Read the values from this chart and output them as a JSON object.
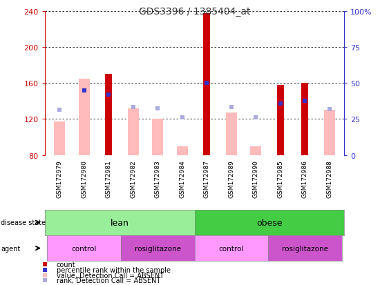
{
  "title": "GDS3396 / 1385404_at",
  "samples": [
    "GSM172979",
    "GSM172980",
    "GSM172981",
    "GSM172982",
    "GSM172983",
    "GSM172984",
    "GSM172987",
    "GSM172989",
    "GSM172990",
    "GSM172985",
    "GSM172986",
    "GSM172988"
  ],
  "count_values": [
    null,
    null,
    170,
    null,
    null,
    null,
    237,
    null,
    null,
    158,
    160,
    null
  ],
  "value_absent": [
    117,
    165,
    null,
    132,
    120,
    90,
    null,
    127,
    90,
    null,
    null,
    130
  ],
  "rank_absent": [
    130,
    null,
    null,
    133,
    132,
    122,
    null,
    133,
    122,
    null,
    null,
    131
  ],
  "percentile_rank": [
    null,
    152,
    147,
    null,
    null,
    null,
    160,
    null,
    null,
    137,
    140,
    null
  ],
  "ylim": [
    80,
    240
  ],
  "y2lim": [
    0,
    100
  ],
  "yticks": [
    80,
    120,
    160,
    200,
    240
  ],
  "y2ticks": [
    0,
    25,
    50,
    75,
    100
  ],
  "colors": {
    "count": "#cc0000",
    "percentile_rank": "#3333cc",
    "value_absent": "#ffbbbb",
    "rank_absent": "#aaaadd",
    "lean": "#99ee99",
    "obese": "#44cc44",
    "control": "#ff99ff",
    "rosiglitazone": "#cc55cc",
    "left_axis": "#cc0000",
    "right_axis": "#3333cc",
    "sample_bg": "#cccccc",
    "title": "#333333",
    "spine": "#bbbbbb"
  },
  "bar_width": 0.45,
  "count_bar_width": 0.28,
  "base": 80,
  "agent_groups": [
    [
      0,
      2,
      "control",
      "#ff99ff"
    ],
    [
      3,
      5,
      "rosiglitazone",
      "#cc55cc"
    ],
    [
      6,
      8,
      "control",
      "#ff99ff"
    ],
    [
      9,
      11,
      "rosiglitazone",
      "#cc55cc"
    ]
  ],
  "legend_items": [
    [
      "#cc0000",
      "count"
    ],
    [
      "#3333cc",
      "percentile rank within the sample"
    ],
    [
      "#ffbbbb",
      "value, Detection Call = ABSENT"
    ],
    [
      "#aaaadd",
      "rank, Detection Call = ABSENT"
    ]
  ]
}
